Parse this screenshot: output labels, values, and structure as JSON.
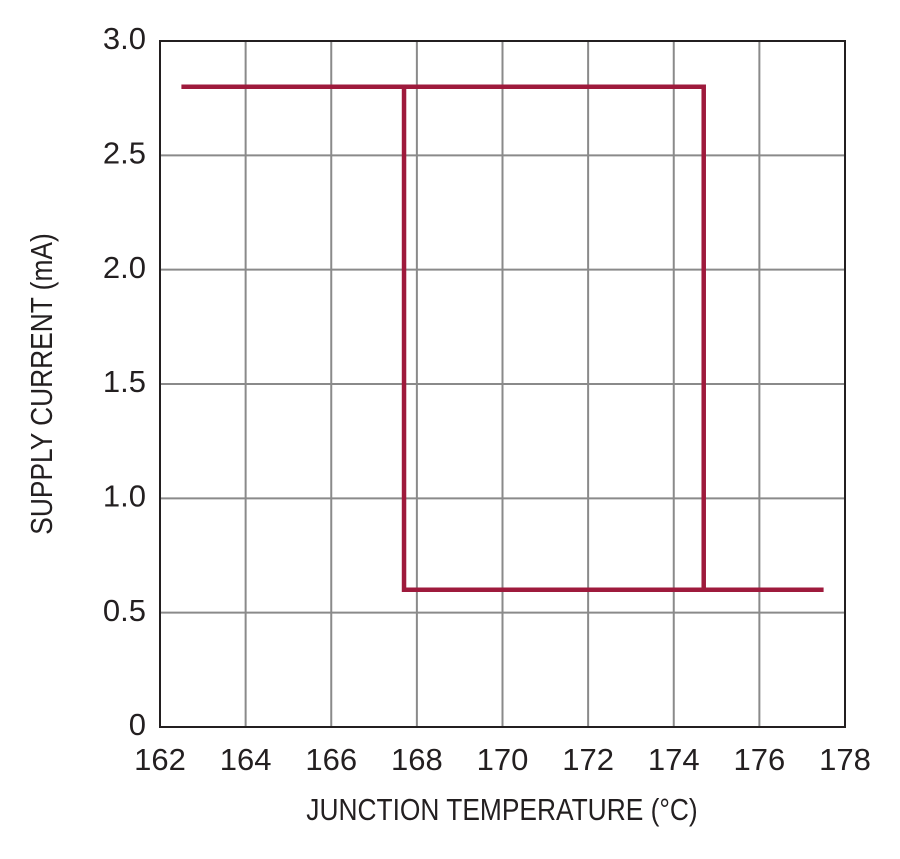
{
  "chart_data": {
    "type": "line",
    "x_label": "JUNCTION TEMPERATURE (°C)",
    "y_label": "SUPPLY CURRENT (mA)",
    "series": [
      {
        "color": "#9e1a3c",
        "x": [
          162.5,
          174.7,
          174.7,
          177.5,
          null,
          167.7,
          167.7,
          174.7
        ],
        "values": [
          2.8,
          2.8,
          0.6,
          0.6,
          null,
          2.8,
          0.6,
          0.6
        ]
      }
    ],
    "xlim": [
      162,
      178
    ],
    "xticks": [
      162,
      164,
      166,
      168,
      170,
      172,
      174,
      176,
      178
    ],
    "ylim": [
      0,
      3
    ],
    "yticks": [
      0,
      0.5,
      {
        "value": 1,
        "label": "1.0"
      },
      1.5,
      {
        "value": 2,
        "label": "2.0"
      },
      2.5,
      {
        "value": 3,
        "label": "3.0"
      }
    ],
    "grid": true
  }
}
